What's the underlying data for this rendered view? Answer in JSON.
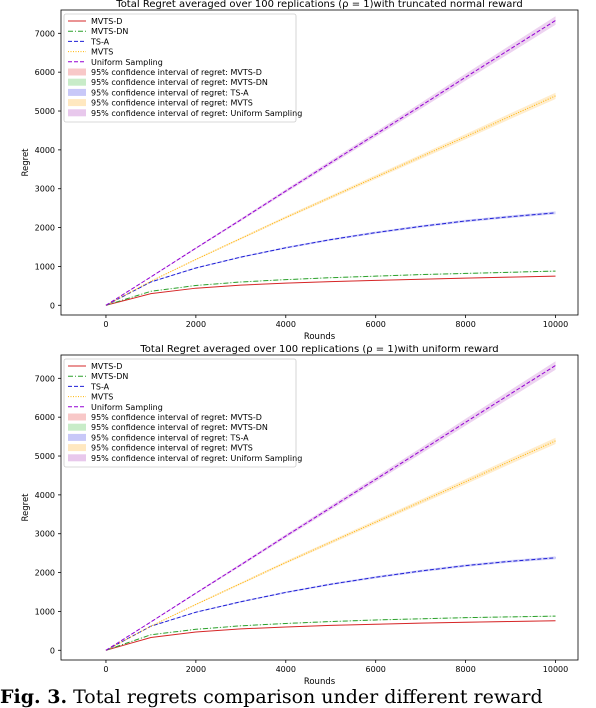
{
  "colors": {
    "MVTS-D": "#d62728",
    "MVTS-DN": "#2ca02c",
    "TS-A": "#1f1fd6",
    "MVTS": "#ffb300",
    "Uniform Sampling": "#9400d3",
    "ci_MVTS-D": "#f8c8c8",
    "ci_MVTS-DN": "#c8ecc8",
    "ci_TS-A": "#c8c8f8",
    "ci_MVTS": "#ffe8c0",
    "ci_Uniform Sampling": "#e8c8ec"
  },
  "caption": {
    "label": "Fig. 3.",
    "text": "Total regrets comparison under different reward"
  },
  "chart_data": [
    {
      "type": "line",
      "title": "Total Regret averaged over 100 replications (ρ = 1)with truncated normal reward",
      "xlabel": "Rounds",
      "ylabel": "Regret",
      "xlim": [
        -1000,
        10500
      ],
      "ylim": [
        -250,
        7600
      ],
      "xticks": [
        0,
        2000,
        4000,
        6000,
        8000,
        10000
      ],
      "xtick_labels": [
        "0",
        "2000",
        "4000",
        "6000",
        "8000",
        "10000"
      ],
      "yticks": [
        0,
        1000,
        2000,
        3000,
        4000,
        5000,
        6000,
        7000
      ],
      "ytick_labels": [
        "0",
        "1000",
        "2000",
        "3000",
        "4000",
        "5000",
        "6000",
        "7000"
      ],
      "grid": false,
      "legend": "top-left",
      "legend_entries": [
        {
          "label": "MVTS-D",
          "kind": "line",
          "series": "MVTS-D"
        },
        {
          "label": "MVTS-DN",
          "kind": "line",
          "series": "MVTS-DN"
        },
        {
          "label": "TS-A",
          "kind": "line",
          "series": "TS-A"
        },
        {
          "label": "MVTS",
          "kind": "line",
          "series": "MVTS"
        },
        {
          "label": "Uniform Sampling",
          "kind": "line",
          "series": "Uniform Sampling"
        },
        {
          "label": "95% confidence interval of regret: MVTS-D",
          "kind": "patch",
          "series": "MVTS-D"
        },
        {
          "label": "95% confidence interval of regret: MVTS-DN",
          "kind": "patch",
          "series": "MVTS-DN"
        },
        {
          "label": "95% confidence interval of regret: TS-A",
          "kind": "patch",
          "series": "TS-A"
        },
        {
          "label": "95% confidence interval of regret: MVTS",
          "kind": "patch",
          "series": "MVTS"
        },
        {
          "label": "95% confidence interval of regret: Uniform Sampling",
          "kind": "patch",
          "series": "Uniform Sampling"
        }
      ],
      "x": [
        0,
        1000,
        2000,
        3000,
        4000,
        5000,
        6000,
        7000,
        8000,
        9000,
        10000
      ],
      "series": [
        {
          "name": "MVTS-D",
          "style": "solid",
          "values": [
            0,
            300,
            440,
            520,
            570,
            610,
            640,
            670,
            700,
            725,
            750
          ]
        },
        {
          "name": "MVTS-DN",
          "style": "dashdot",
          "values": [
            0,
            360,
            510,
            600,
            660,
            710,
            750,
            790,
            820,
            850,
            880
          ]
        },
        {
          "name": "TS-A",
          "style": "dashed",
          "values": [
            0,
            600,
            960,
            1240,
            1480,
            1690,
            1870,
            2030,
            2170,
            2280,
            2380
          ]
        },
        {
          "name": "MVTS",
          "style": "dotted",
          "values": [
            0,
            620,
            1180,
            1720,
            2260,
            2780,
            3300,
            3820,
            4340,
            4870,
            5390
          ]
        },
        {
          "name": "Uniform Sampling",
          "style": "dashed",
          "values": [
            0,
            730,
            1470,
            2200,
            2940,
            3670,
            4400,
            5130,
            5870,
            6600,
            7330
          ]
        }
      ]
    },
    {
      "type": "line",
      "title": "Total Regret averaged over 100 replications (ρ = 1)with uniform reward",
      "xlabel": "Rounds",
      "ylabel": "Regret",
      "xlim": [
        -1000,
        10500
      ],
      "ylim": [
        -250,
        7600
      ],
      "xticks": [
        0,
        2000,
        4000,
        6000,
        8000,
        10000
      ],
      "xtick_labels": [
        "0",
        "2000",
        "4000",
        "6000",
        "8000",
        "10000"
      ],
      "yticks": [
        0,
        1000,
        2000,
        3000,
        4000,
        5000,
        6000,
        7000
      ],
      "ytick_labels": [
        "0",
        "1000",
        "2000",
        "3000",
        "4000",
        "5000",
        "6000",
        "7000"
      ],
      "grid": false,
      "legend": "top-left",
      "legend_entries": [
        {
          "label": "MVTS-D",
          "kind": "line",
          "series": "MVTS-D"
        },
        {
          "label": "MVTS-DN",
          "kind": "line",
          "series": "MVTS-DN"
        },
        {
          "label": "TS-A",
          "kind": "line",
          "series": "TS-A"
        },
        {
          "label": "MVTS",
          "kind": "line",
          "series": "MVTS"
        },
        {
          "label": "Uniform Sampling",
          "kind": "line",
          "series": "Uniform Sampling"
        },
        {
          "label": "95% confidence interval of regret: MVTS-D",
          "kind": "patch",
          "series": "MVTS-D"
        },
        {
          "label": "95% confidence interval of regret: MVTS-DN",
          "kind": "patch",
          "series": "MVTS-DN"
        },
        {
          "label": "95% confidence interval of regret: TS-A",
          "kind": "patch",
          "series": "TS-A"
        },
        {
          "label": "95% confidence interval of regret: MVTS",
          "kind": "patch",
          "series": "MVTS"
        },
        {
          "label": "95% confidence interval of regret: Uniform Sampling",
          "kind": "patch",
          "series": "Uniform Sampling"
        }
      ],
      "x": [
        0,
        1000,
        2000,
        3000,
        4000,
        5000,
        6000,
        7000,
        8000,
        9000,
        10000
      ],
      "series": [
        {
          "name": "MVTS-D",
          "style": "solid",
          "values": [
            0,
            330,
            470,
            550,
            600,
            640,
            670,
            700,
            720,
            740,
            760
          ]
        },
        {
          "name": "MVTS-DN",
          "style": "dashdot",
          "values": [
            0,
            400,
            540,
            630,
            690,
            740,
            780,
            810,
            840,
            860,
            880
          ]
        },
        {
          "name": "TS-A",
          "style": "dashed",
          "values": [
            0,
            620,
            980,
            1250,
            1490,
            1700,
            1880,
            2040,
            2180,
            2290,
            2380
          ]
        },
        {
          "name": "MVTS",
          "style": "dotted",
          "values": [
            0,
            620,
            1180,
            1720,
            2260,
            2780,
            3300,
            3820,
            4340,
            4870,
            5390
          ]
        },
        {
          "name": "Uniform Sampling",
          "style": "dashed",
          "values": [
            0,
            730,
            1470,
            2200,
            2940,
            3670,
            4400,
            5130,
            5870,
            6600,
            7330
          ]
        }
      ]
    }
  ]
}
